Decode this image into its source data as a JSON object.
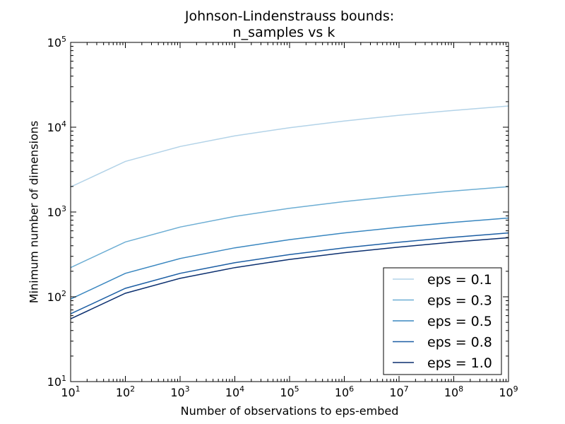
{
  "chart_data": {
    "type": "line",
    "title_line1": "Johnson-Lindenstrauss bounds:",
    "title_line2": "n_samples vs k",
    "xlabel": "Number of observations to eps-embed",
    "ylabel": "Minimum number of dimensions",
    "xscale": "log",
    "yscale": "log",
    "xlim": [
      10,
      1000000000
    ],
    "ylim": [
      10,
      100000
    ],
    "grid": false,
    "legend_position": "lower-right",
    "x": [
      10,
      100,
      1000,
      10000,
      100000,
      1000000,
      10000000,
      100000000,
      1000000000
    ],
    "x_ticks": [
      {
        "base": "10",
        "exp": "1",
        "value": 10
      },
      {
        "base": "10",
        "exp": "2",
        "value": 100
      },
      {
        "base": "10",
        "exp": "3",
        "value": 1000
      },
      {
        "base": "10",
        "exp": "4",
        "value": 10000
      },
      {
        "base": "10",
        "exp": "5",
        "value": 100000
      },
      {
        "base": "10",
        "exp": "6",
        "value": 1000000
      },
      {
        "base": "10",
        "exp": "7",
        "value": 10000000
      },
      {
        "base": "10",
        "exp": "8",
        "value": 100000000
      },
      {
        "base": "10",
        "exp": "9",
        "value": 1000000000
      }
    ],
    "y_ticks": [
      {
        "base": "10",
        "exp": "1",
        "value": 10
      },
      {
        "base": "10",
        "exp": "2",
        "value": 100
      },
      {
        "base": "10",
        "exp": "3",
        "value": 1000
      },
      {
        "base": "10",
        "exp": "4",
        "value": 10000
      },
      {
        "base": "10",
        "exp": "5",
        "value": 100000
      }
    ],
    "series": [
      {
        "name": "eps = 0.1",
        "color": "#b3d3e8",
        "values": [
          1974,
          3948,
          5922,
          7896,
          9870,
          11844,
          13818,
          15792,
          17766
        ]
      },
      {
        "name": "eps = 0.3",
        "color": "#6daed4",
        "values": [
          221,
          443,
          664,
          886,
          1107,
          1329,
          1550,
          1772,
          1993
        ]
      },
      {
        "name": "eps = 0.5",
        "color": "#3a87c0",
        "values": [
          94,
          189,
          283,
          378,
          472,
          567,
          661,
          756,
          850
        ]
      },
      {
        "name": "eps = 0.8",
        "color": "#1c5ea4",
        "values": [
          63,
          126,
          189,
          252,
          315,
          378,
          441,
          504,
          567
        ]
      },
      {
        "name": "eps = 1.0",
        "color": "#0b2f6f",
        "values": [
          55,
          110,
          165,
          221,
          276,
          331,
          386,
          442,
          497
        ]
      }
    ]
  }
}
